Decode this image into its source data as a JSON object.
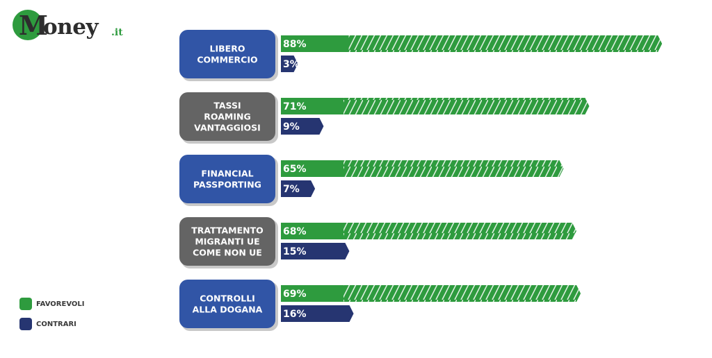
{
  "brand": {
    "name_initial": "M",
    "name_rest": "oney",
    "name_suffix": ".it",
    "colors": {
      "logo_green": "#2e9b3e",
      "logo_text": "#2d2d2d"
    }
  },
  "colors": {
    "favorevoli": "#2e9b3e",
    "contrari": "#263571",
    "label_blue": "#3155a6",
    "label_gray": "#646464"
  },
  "legend": [
    {
      "label": "FAVOREVOLI",
      "color": "#2e9b3e"
    },
    {
      "label": "CONTRARI",
      "color": "#263571"
    }
  ],
  "chart_data": {
    "type": "bar",
    "orientation": "horizontal",
    "categories": [
      {
        "lines": [
          "LIBERO",
          "COMMERCIO"
        ],
        "style": "blue"
      },
      {
        "lines": [
          "TASSI",
          "ROAMING",
          "VANTAGGIOSI"
        ],
        "style": "gray"
      },
      {
        "lines": [
          "FINANCIAL",
          "PASSPORTING"
        ],
        "style": "blue"
      },
      {
        "lines": [
          "TRATTAMENTO",
          "MIGRANTI UE",
          "COME NON UE"
        ],
        "style": "gray"
      },
      {
        "lines": [
          "CONTROLLI",
          "ALLA DOGANA"
        ],
        "style": "blue"
      }
    ],
    "series": [
      {
        "name": "FAVOREVOLI",
        "values": [
          88,
          71,
          65,
          68,
          69
        ],
        "labels": [
          "88%",
          "71%",
          "65%",
          "68%",
          "69%"
        ]
      },
      {
        "name": "CONTRARI",
        "values": [
          3,
          9,
          7,
          15,
          16
        ],
        "labels": [
          "3%",
          "9%",
          "7%",
          "15%",
          "16%"
        ]
      }
    ],
    "unit": "%",
    "legend_position": "bottom-left",
    "grid": false
  }
}
